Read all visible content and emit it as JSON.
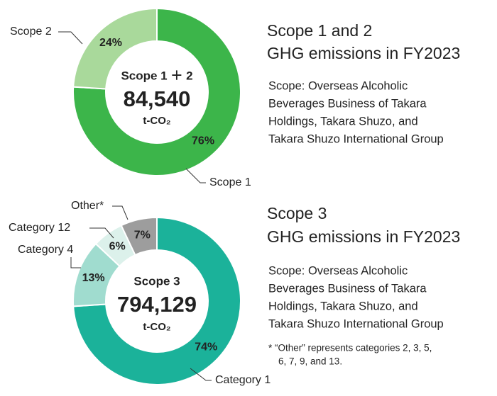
{
  "chart_data": [
    {
      "type": "pie",
      "donut": true,
      "center_text": [
        "Scope 1 ＋ 2",
        "84,540",
        "t-CO₂"
      ],
      "categories": [
        "Scope 1",
        "Scope 2"
      ],
      "values": [
        76,
        24
      ],
      "value_labels": [
        "76%",
        "24%"
      ],
      "colors": [
        "#3cb54a",
        "#a9d99b"
      ],
      "title": [
        "Scope 1 and 2",
        "GHG emissions in FY2023"
      ],
      "description": [
        "Scope: Overseas Alcoholic",
        "Beverages Business of Takara",
        "Holdings, Takara Shuzo, and",
        "Takara Shuzo International Group"
      ]
    },
    {
      "type": "pie",
      "donut": true,
      "center_text": [
        "Scope 3",
        "794,129",
        "t-CO₂"
      ],
      "categories": [
        "Category 1",
        "Category 4",
        "Category 12",
        "Other*"
      ],
      "values": [
        74,
        13,
        6,
        7
      ],
      "value_labels": [
        "74%",
        "13%",
        "6%",
        "7%"
      ],
      "colors": [
        "#1bb29a",
        "#a0dccf",
        "#dcf1eb",
        "#9d9d9d"
      ],
      "title": [
        "Scope 3",
        "GHG emissions in FY2023"
      ],
      "description": [
        "Scope: Overseas Alcoholic",
        "Beverages Business of Takara",
        "Holdings, Takara Shuzo, and",
        "Takara Shuzo International Group"
      ],
      "footnote": [
        "* “Other” represents categories 2, 3, 5,",
        "6, 7, 9, and 13."
      ]
    }
  ]
}
